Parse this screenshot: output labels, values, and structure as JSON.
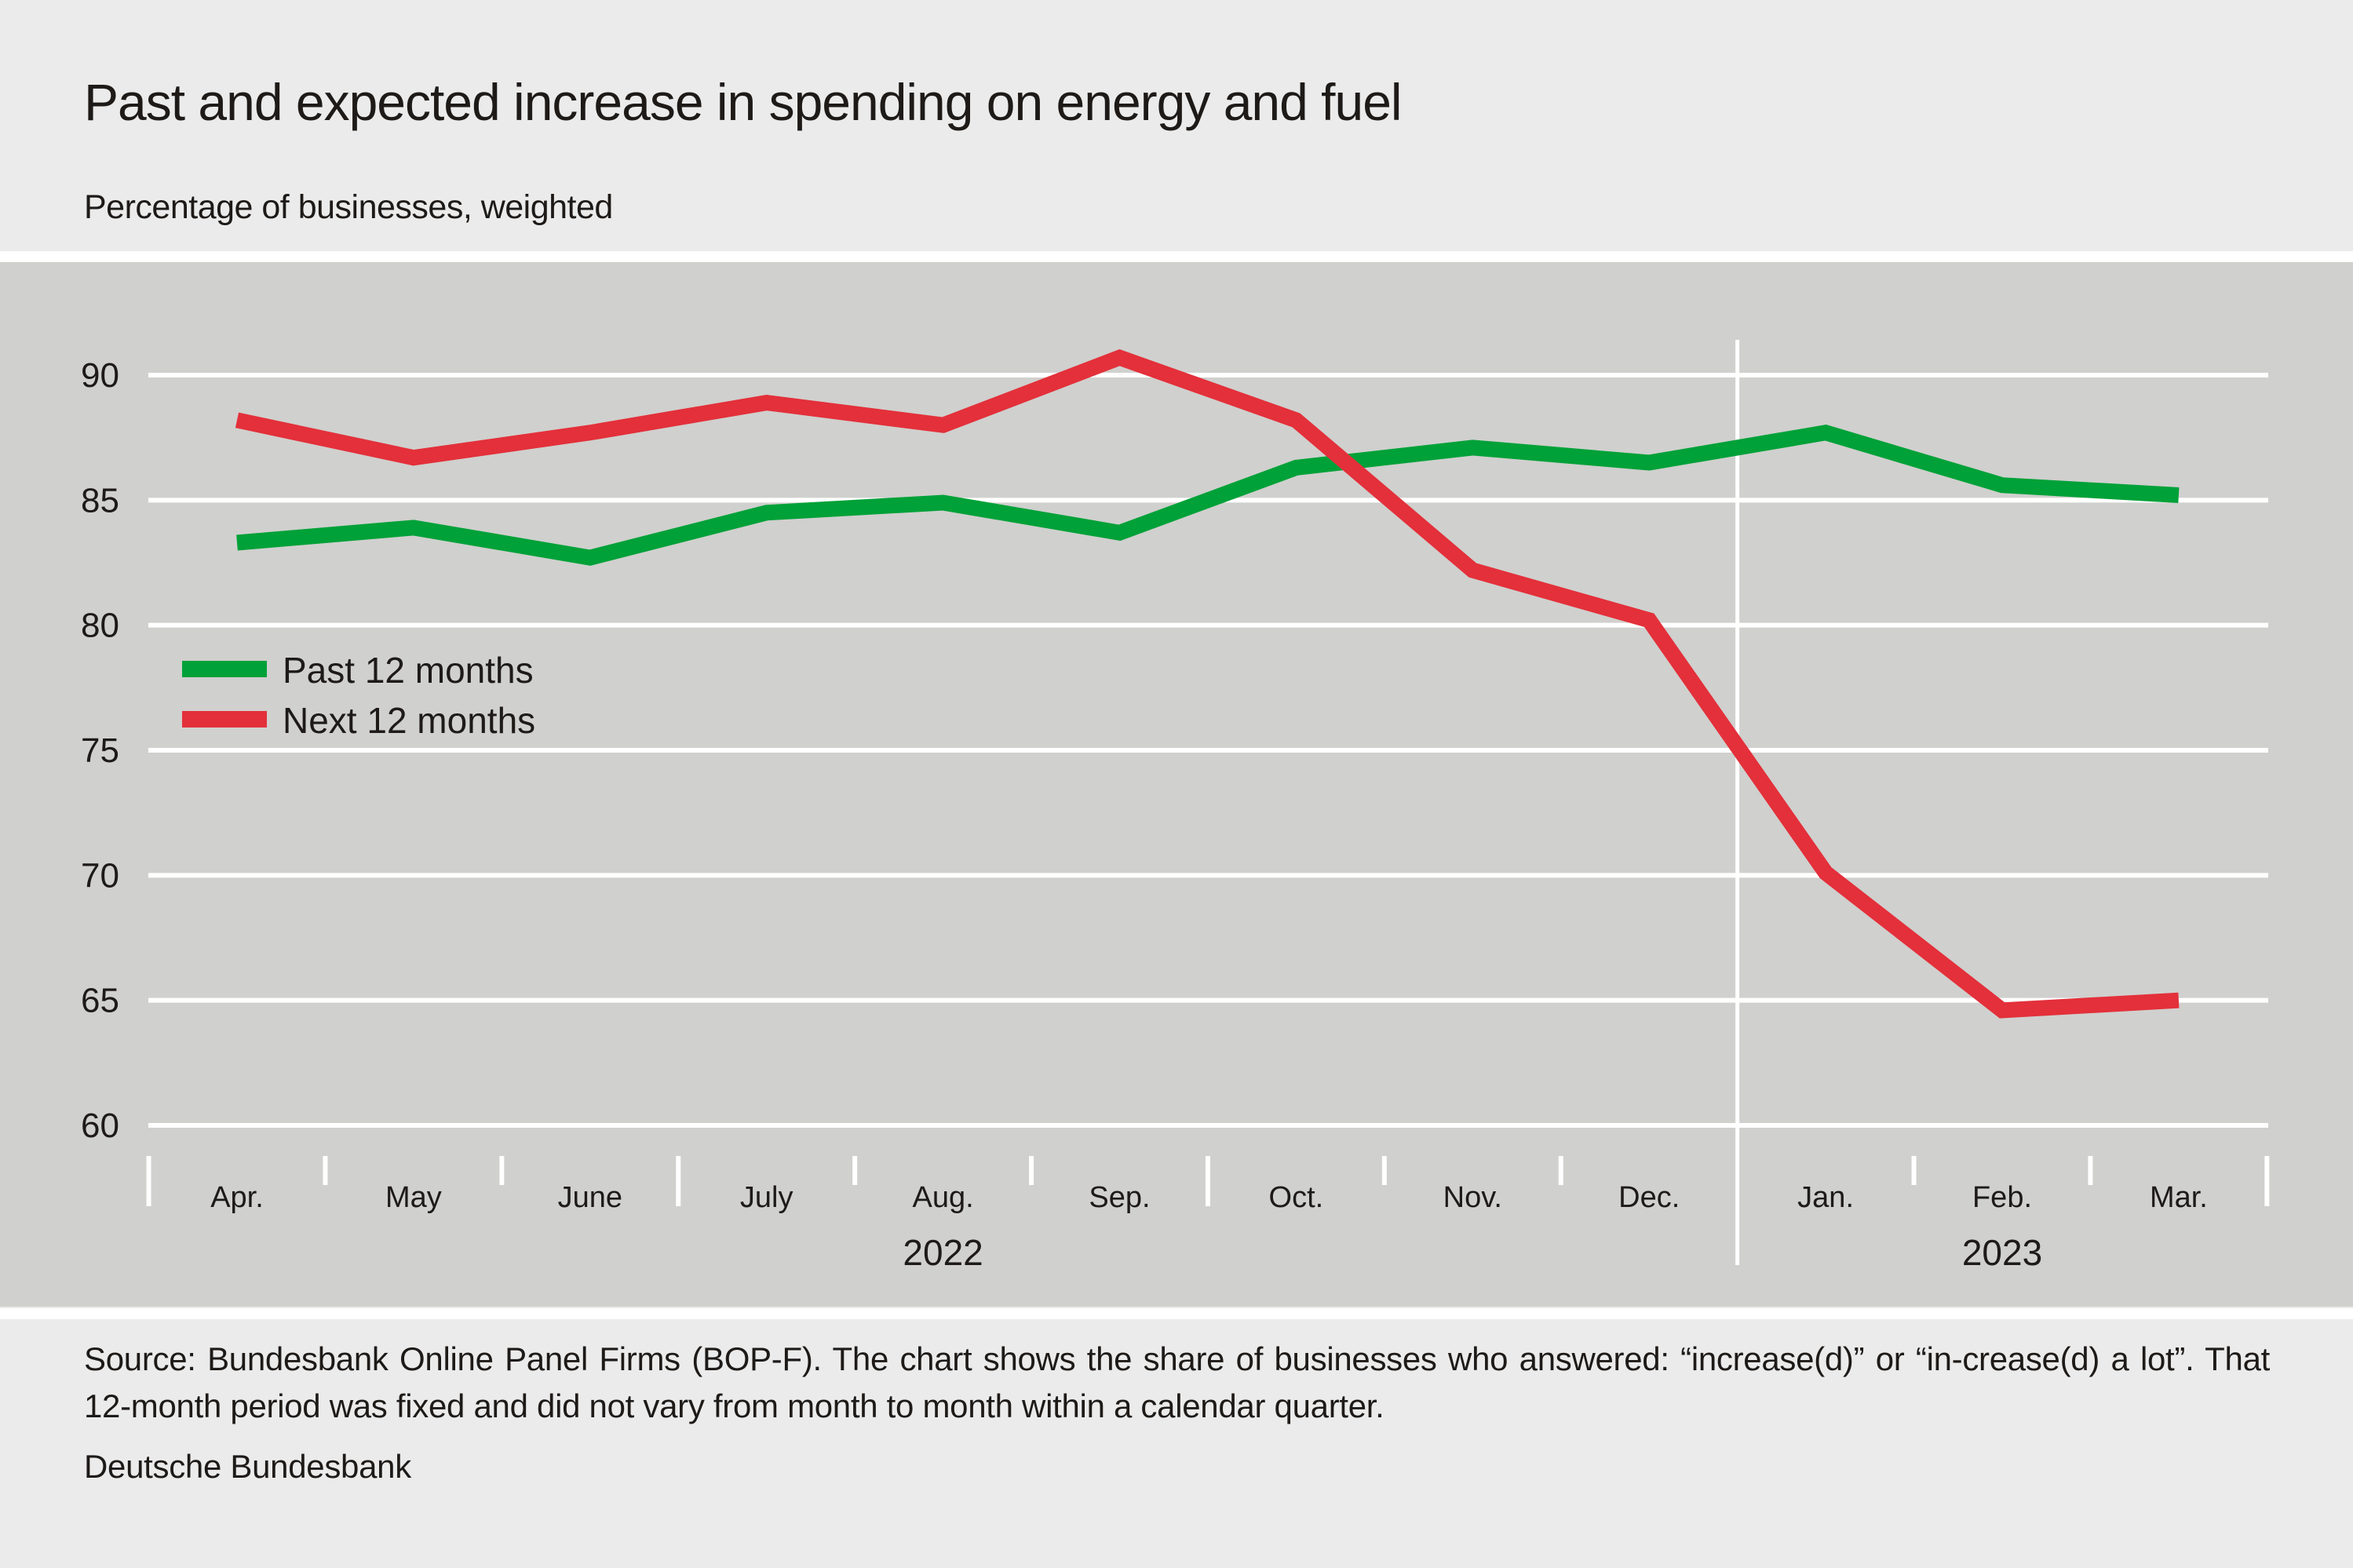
{
  "header": {
    "title": "Past and expected increase in spending on energy and fuel",
    "subtitle": "Percentage of businesses, weighted"
  },
  "footer": {
    "source": "Source: Bundesbank Online Panel Firms (BOP-F). The chart shows the share of businesses who answered: “increase(d)” or “in-crease(d) a lot”. That 12-month period was fixed and did not vary from month to month within a calendar quarter.",
    "credit": "Deutsche Bundesbank"
  },
  "colors": {
    "past": "#00a138",
    "next": "#e3303a",
    "plot_background": "#d0d0ce",
    "page_background": "#ebebeb",
    "gridline": "#ffffff"
  },
  "chart_data": {
    "type": "line",
    "title": "Past and expected increase in spending on energy and fuel",
    "subtitle": "Percentage of businesses, weighted",
    "xlabel": "",
    "ylabel": "",
    "categories": [
      "Apr.",
      "May",
      "June",
      "July",
      "Aug.",
      "Sep.",
      "Oct.",
      "Nov.",
      "Dec.",
      "Jan.",
      "Feb.",
      "Mar."
    ],
    "year_groups": [
      {
        "label": "2022",
        "from": 0,
        "to": 8
      },
      {
        "label": "2023",
        "from": 9,
        "to": 11
      }
    ],
    "series": [
      {
        "name": "Past 12 months",
        "color": "#00a138",
        "values": [
          83.3,
          83.9,
          82.7,
          84.5,
          84.9,
          83.7,
          86.3,
          87.1,
          86.5,
          87.7,
          85.6,
          85.2
        ]
      },
      {
        "name": "Next 12 months",
        "color": "#e3303a",
        "values": [
          88.2,
          86.7,
          87.7,
          88.9,
          88.0,
          90.7,
          88.2,
          82.2,
          80.2,
          70.1,
          64.6,
          65.0
        ]
      }
    ],
    "ylim": [
      60,
      92.5
    ],
    "yticks": [
      60,
      65,
      70,
      75,
      80,
      85,
      90
    ],
    "grid": true,
    "legend_position": "middle-left",
    "quarter_start_indices": [
      0,
      3,
      6,
      9
    ],
    "year_divider_after_index": 8
  }
}
